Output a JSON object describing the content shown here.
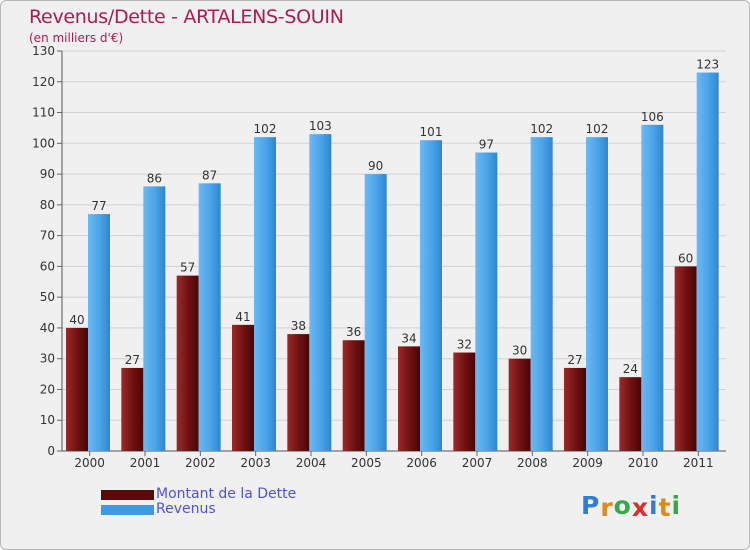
{
  "header": {
    "title": "Revenus/Dette - ARTALENS-SOUIN",
    "subtitle": "(en milliers d'€)"
  },
  "chart_data": {
    "type": "bar",
    "title": "Revenus/Dette - ARTALENS-SOUIN",
    "subtitle": "(en milliers d'€)",
    "xlabel": "",
    "ylabel": "",
    "categories": [
      "2000",
      "2001",
      "2002",
      "2003",
      "2004",
      "2005",
      "2006",
      "2007",
      "2008",
      "2009",
      "2010",
      "2011"
    ],
    "series": [
      {
        "name": "Montant de la Dette",
        "values": [
          40,
          27,
          57,
          41,
          38,
          36,
          34,
          32,
          30,
          27,
          24,
          60
        ],
        "color": "#7a1414"
      },
      {
        "name": "Revenus",
        "values": [
          77,
          86,
          87,
          102,
          103,
          90,
          101,
          97,
          102,
          102,
          106,
          123
        ],
        "color": "#4aa3e8"
      }
    ],
    "ylim": [
      0,
      130
    ],
    "yticks": [
      0,
      10,
      20,
      30,
      40,
      50,
      60,
      70,
      80,
      90,
      100,
      110,
      120,
      130
    ],
    "grid": true,
    "legend_position": "bottom-left"
  },
  "legend": [
    {
      "label": "Montant de la Dette",
      "color": "#5a0a0a"
    },
    {
      "label": "Revenus",
      "color": "#3d9ae2"
    }
  ],
  "logo": {
    "letters": [
      "P",
      "r",
      "o",
      "x",
      "i",
      "t",
      "i"
    ],
    "colors": [
      "#2e7fd1",
      "#e08a1a",
      "#3aa64a",
      "#d62f2f",
      "#2e7fd1",
      "#e08a1a",
      "#3aa64a"
    ]
  }
}
